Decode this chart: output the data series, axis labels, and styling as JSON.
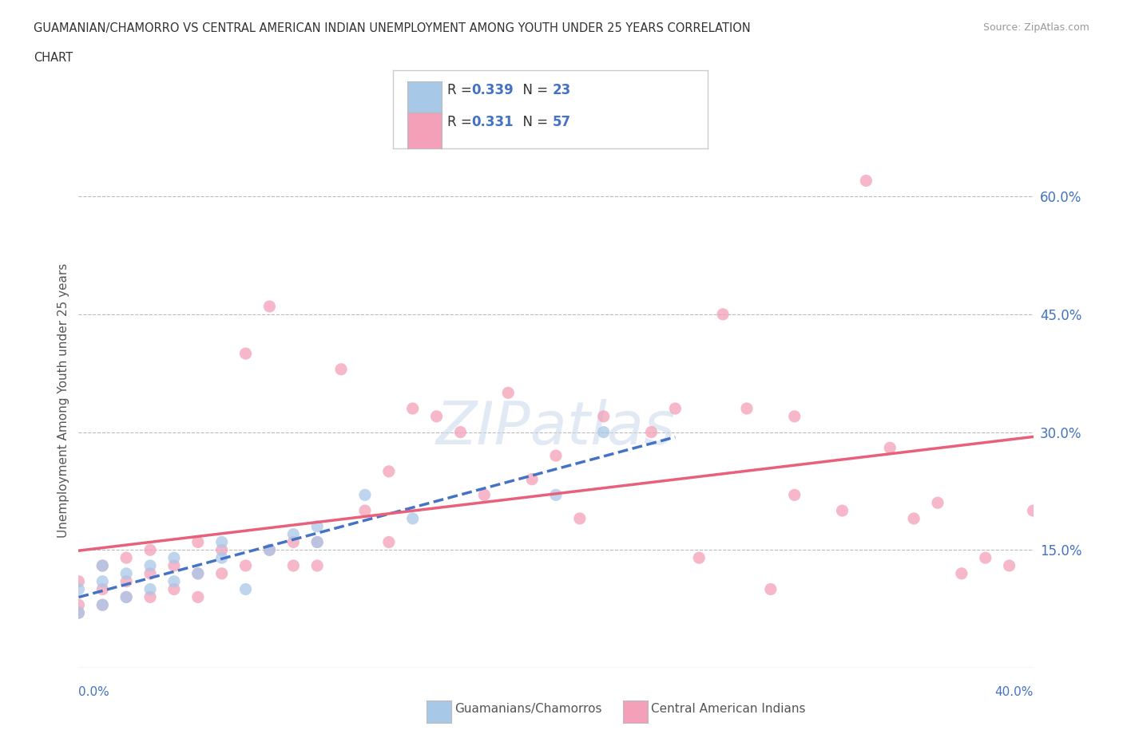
{
  "title_line1": "GUAMANIAN/CHAMORRO VS CENTRAL AMERICAN INDIAN UNEMPLOYMENT AMONG YOUTH UNDER 25 YEARS CORRELATION",
  "title_line2": "CHART",
  "source": "Source: ZipAtlas.com",
  "ylabel": "Unemployment Among Youth under 25 years",
  "ytick_values": [
    0.15,
    0.3,
    0.45,
    0.6
  ],
  "xlim": [
    0.0,
    0.4
  ],
  "ylim": [
    0.0,
    0.68
  ],
  "watermark": "ZIPatlas",
  "guamanian_color": "#A8C8E8",
  "central_color": "#F4A0B8",
  "trend_guam_color": "#4472C4",
  "trend_central_color": "#E8607A",
  "background_color": "#FFFFFF",
  "guamanian_R": "0.339",
  "guamanian_N": "23",
  "central_R": "0.331",
  "central_N": "57",
  "guamanian_points_x": [
    0.0,
    0.0,
    0.01,
    0.01,
    0.01,
    0.02,
    0.02,
    0.03,
    0.03,
    0.04,
    0.04,
    0.05,
    0.06,
    0.06,
    0.07,
    0.08,
    0.09,
    0.1,
    0.1,
    0.12,
    0.14,
    0.2,
    0.22
  ],
  "guamanian_points_y": [
    0.07,
    0.1,
    0.08,
    0.11,
    0.13,
    0.09,
    0.12,
    0.1,
    0.13,
    0.11,
    0.14,
    0.12,
    0.14,
    0.16,
    0.1,
    0.15,
    0.17,
    0.16,
    0.18,
    0.22,
    0.19,
    0.22,
    0.3
  ],
  "central_points_x": [
    0.0,
    0.0,
    0.0,
    0.01,
    0.01,
    0.01,
    0.02,
    0.02,
    0.02,
    0.03,
    0.03,
    0.03,
    0.04,
    0.04,
    0.05,
    0.05,
    0.05,
    0.06,
    0.06,
    0.07,
    0.07,
    0.08,
    0.08,
    0.09,
    0.09,
    0.1,
    0.1,
    0.11,
    0.12,
    0.13,
    0.13,
    0.14,
    0.15,
    0.16,
    0.17,
    0.18,
    0.19,
    0.2,
    0.21,
    0.22,
    0.24,
    0.25,
    0.26,
    0.27,
    0.28,
    0.29,
    0.3,
    0.32,
    0.33,
    0.34,
    0.35,
    0.36,
    0.37,
    0.38,
    0.39,
    0.4,
    0.3
  ],
  "central_points_y": [
    0.07,
    0.08,
    0.11,
    0.08,
    0.1,
    0.13,
    0.09,
    0.11,
    0.14,
    0.09,
    0.12,
    0.15,
    0.1,
    0.13,
    0.09,
    0.12,
    0.16,
    0.12,
    0.15,
    0.13,
    0.4,
    0.15,
    0.46,
    0.13,
    0.16,
    0.13,
    0.16,
    0.38,
    0.2,
    0.16,
    0.25,
    0.33,
    0.32,
    0.3,
    0.22,
    0.35,
    0.24,
    0.27,
    0.19,
    0.32,
    0.3,
    0.33,
    0.14,
    0.45,
    0.33,
    0.1,
    0.32,
    0.2,
    0.62,
    0.28,
    0.19,
    0.21,
    0.12,
    0.14,
    0.13,
    0.2,
    0.22
  ]
}
